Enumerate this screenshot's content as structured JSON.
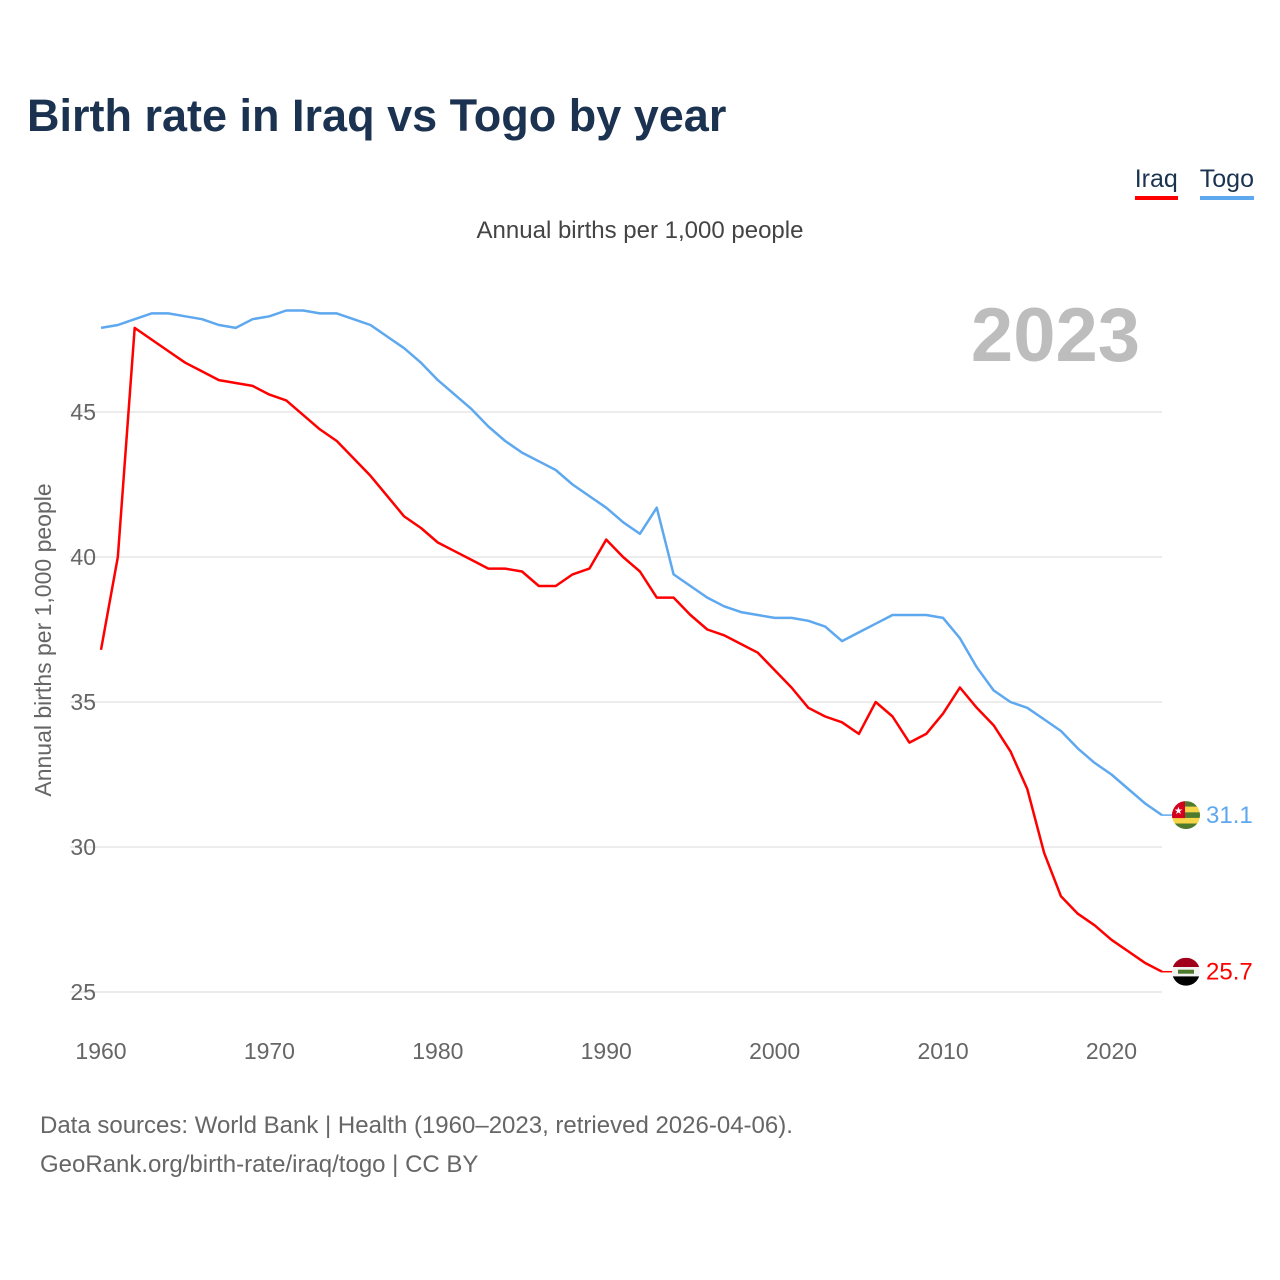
{
  "title": "Birth rate in Iraq vs Togo by year",
  "legend": [
    {
      "label": "Iraq",
      "color": "#ff0000"
    },
    {
      "label": "Togo",
      "color": "#5ea8ef"
    }
  ],
  "subtitle": "Annual births per 1,000 people",
  "current_year": "2023",
  "source_line1": "Data sources: World Bank | Health (1960–2023, retrieved 2026-04-06).",
  "source_line2": "GeoRank.org/birth-rate/iraq/togo | CC BY",
  "chart_data": {
    "type": "line",
    "title": "Birth rate in Iraq vs Togo by year",
    "xlabel": "",
    "ylabel": "Annual births per 1,000 people",
    "xlim": [
      1960,
      2023
    ],
    "ylim": [
      24.5,
      49
    ],
    "xticks": [
      1960,
      1970,
      1980,
      1990,
      2000,
      2010,
      2020
    ],
    "yticks": [
      25,
      30,
      35,
      40,
      45
    ],
    "grid": true,
    "legend_position": "top-right",
    "x_start": 1960,
    "series": [
      {
        "name": "Iraq",
        "color": "#ff0000",
        "end_label": "25.7",
        "values": [
          36.8,
          40.0,
          47.9,
          47.5,
          47.1,
          46.7,
          46.4,
          46.1,
          46.0,
          45.9,
          45.6,
          45.4,
          44.9,
          44.4,
          44.0,
          43.4,
          42.8,
          42.1,
          41.4,
          41.0,
          40.5,
          40.2,
          39.9,
          39.6,
          39.6,
          39.5,
          39.0,
          39.0,
          39.4,
          39.6,
          40.6,
          40.0,
          39.5,
          38.6,
          38.6,
          38.0,
          37.5,
          37.3,
          37.0,
          36.7,
          36.1,
          35.5,
          34.8,
          34.5,
          34.3,
          33.9,
          35.0,
          34.5,
          33.6,
          33.9,
          34.6,
          35.5,
          34.8,
          34.2,
          33.3,
          32.0,
          29.8,
          28.3,
          27.7,
          27.3,
          26.8,
          26.4,
          26.0,
          25.7
        ]
      },
      {
        "name": "Togo",
        "color": "#5ea8ef",
        "end_label": "31.1",
        "values": [
          47.9,
          48.0,
          48.2,
          48.4,
          48.4,
          48.3,
          48.2,
          48.0,
          47.9,
          48.2,
          48.3,
          48.5,
          48.5,
          48.4,
          48.4,
          48.2,
          48.0,
          47.6,
          47.2,
          46.7,
          46.1,
          45.6,
          45.1,
          44.5,
          44.0,
          43.6,
          43.3,
          43.0,
          42.5,
          42.1,
          41.7,
          41.2,
          40.8,
          41.7,
          39.4,
          39.0,
          38.6,
          38.3,
          38.1,
          38.0,
          37.9,
          37.9,
          37.8,
          37.6,
          37.1,
          37.4,
          37.7,
          38.0,
          38.0,
          38.0,
          37.9,
          37.2,
          36.2,
          35.4,
          35.0,
          34.8,
          34.4,
          34.0,
          33.4,
          32.9,
          32.5,
          32.0,
          31.5,
          31.1
        ]
      }
    ]
  }
}
